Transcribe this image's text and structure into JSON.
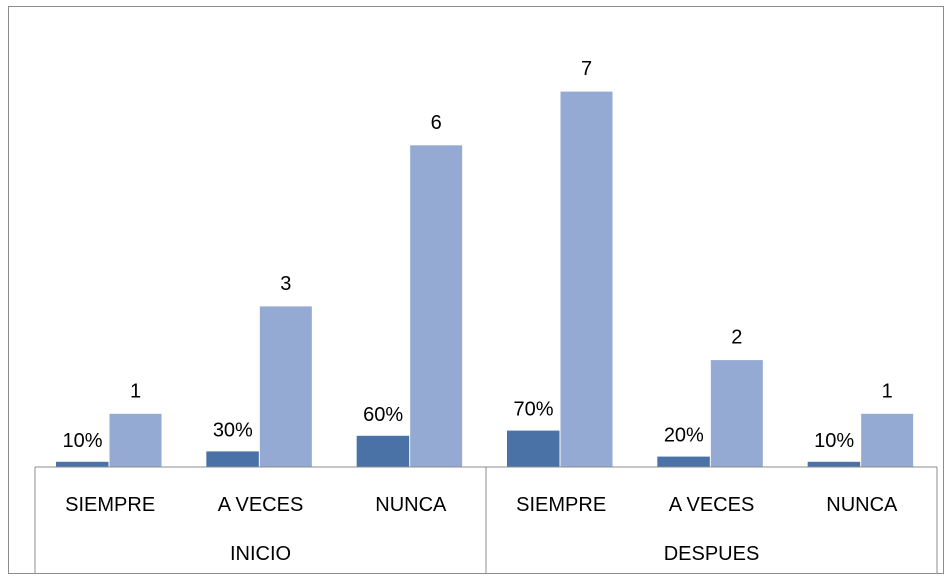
{
  "chart_data": {
    "type": "bar",
    "groups": [
      {
        "label": "INICIO",
        "categories": [
          "SIEMPRE",
          "A VECES",
          "NUNCA"
        ]
      },
      {
        "label": "DESPUES",
        "categories": [
          "SIEMPRE",
          "A VECES",
          "NUNCA"
        ]
      }
    ],
    "series": [
      {
        "values": [
          0.1,
          0.3,
          0.6,
          0.7,
          0.2,
          0.1
        ],
        "labels": [
          "10%",
          "30%",
          "60%",
          "70%",
          "20%",
          "10%"
        ],
        "color": "#4a72a6"
      },
      {
        "values": [
          1,
          3,
          6,
          7,
          2,
          1
        ],
        "labels": [
          "1",
          "3",
          "6",
          "7",
          "2",
          "1"
        ],
        "color": "#95aad2"
      }
    ],
    "ylim": [
      0,
      7
    ],
    "grid": false,
    "legend": "none"
  }
}
